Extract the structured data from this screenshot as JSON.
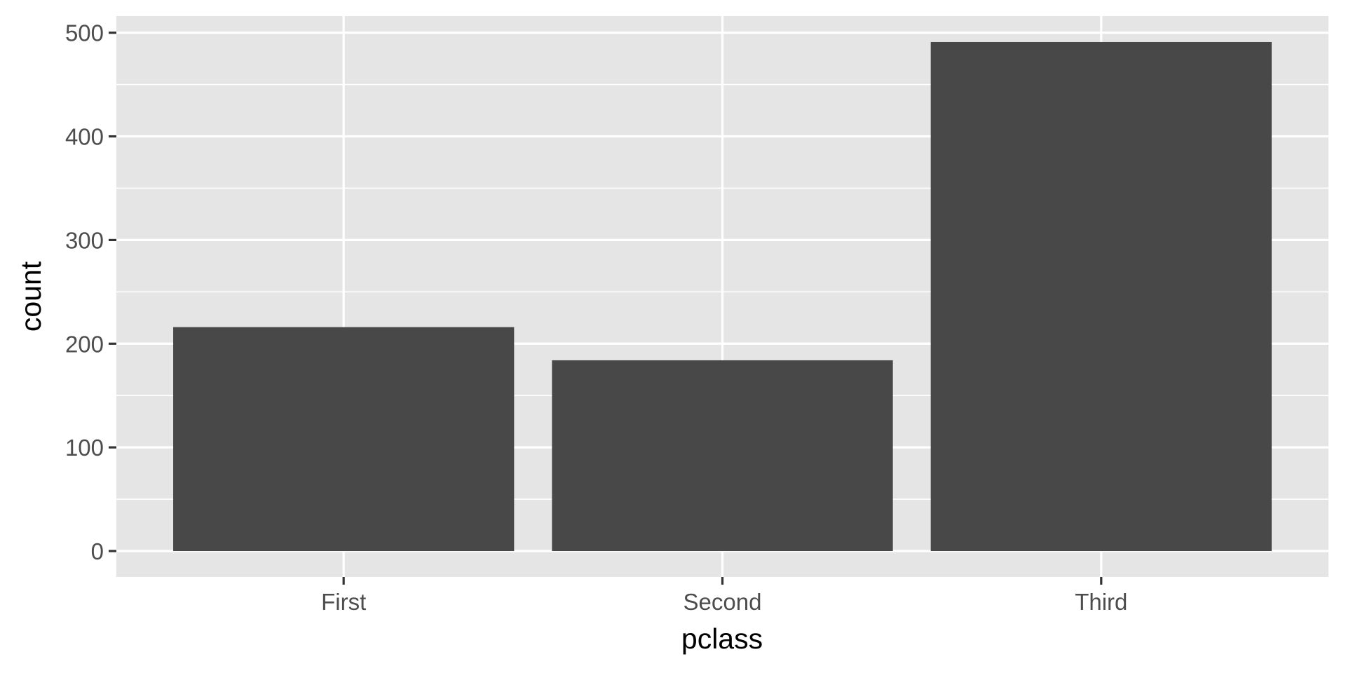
{
  "chart_data": {
    "type": "bar",
    "title": "",
    "xlabel": "pclass",
    "ylabel": "count",
    "categories": [
      "First",
      "Second",
      "Third"
    ],
    "values": [
      216,
      184,
      491
    ],
    "ylim": [
      -25,
      516
    ],
    "yticks": [
      0,
      100,
      200,
      300,
      400,
      500
    ],
    "grid": true,
    "legend": "none",
    "colors": {
      "bar": "#484848",
      "panel": "#e5e5e5",
      "grid": "#ffffff",
      "tick_mark": "#333333"
    }
  }
}
